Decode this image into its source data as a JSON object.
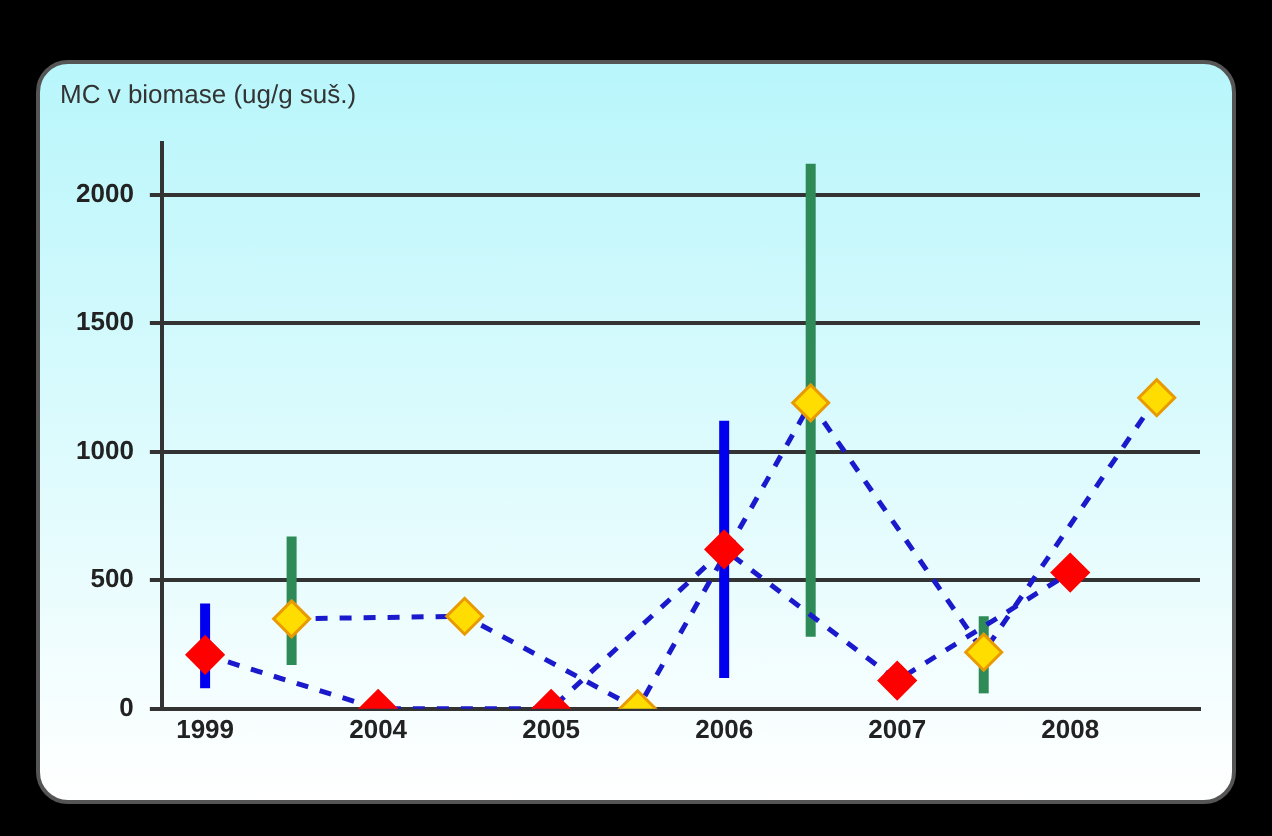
{
  "chart_data": {
    "type": "line",
    "title": "MC v biomase (ug/g suš.)",
    "categories": [
      "1999",
      null,
      "2004",
      null,
      "2005",
      null,
      "2006",
      null,
      "2007",
      null,
      "2008",
      null
    ],
    "series": [
      {
        "color": "#1a1acc",
        "colors": [
          "#ff0000",
          null,
          "#ff0000",
          null,
          "#ff0000",
          null,
          "#ff0000",
          null,
          "#ff0000",
          null,
          "#ff0000",
          null
        ],
        "values": [
          210,
          null,
          0,
          null,
          0,
          null,
          620,
          null,
          110,
          null,
          530,
          null
        ],
        "errors": [
          [
            80,
            410
          ],
          null,
          null,
          null,
          null,
          null,
          [
            120,
            1120
          ],
          null,
          null,
          null,
          null,
          null
        ]
      },
      {
        "color": "#1a1acc",
        "colors": [
          null,
          "#ffdd00",
          null,
          "#ffdd00",
          null,
          "#ffdd00",
          null,
          "#ffdd00",
          null,
          "#ffdd00",
          null,
          "#ffdd00"
        ],
        "values": [
          null,
          350,
          null,
          360,
          null,
          0,
          null,
          1190,
          null,
          220,
          null,
          1210
        ],
        "errors": [
          null,
          [
            170,
            670
          ],
          null,
          null,
          null,
          null,
          null,
          [
            280,
            2120
          ],
          null,
          [
            60,
            360
          ],
          null,
          null
        ]
      }
    ],
    "ylim": [
      0,
      2200
    ],
    "yticks": [
      0,
      500,
      1000,
      1500,
      2000
    ],
    "grid": "y",
    "legend": false,
    "marker": "diamond",
    "line_style": "dashed"
  }
}
